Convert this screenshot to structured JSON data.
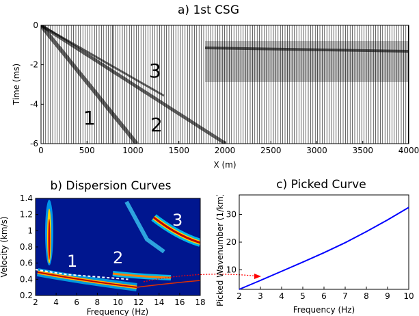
{
  "chart_data": [
    {
      "type": "image",
      "title": "a) 1st CSG",
      "xlabel": "X (m)",
      "ylabel": "Time (ms)",
      "xlim": [
        0,
        4000
      ],
      "ylim": [
        -6,
        0
      ],
      "xticks": [
        0,
        500,
        1000,
        1500,
        2000,
        2500,
        3000,
        3500,
        4000
      ],
      "yticks": [
        0,
        -2,
        -4,
        -6
      ],
      "annotations": [
        "1",
        "2",
        "3"
      ]
    },
    {
      "type": "image",
      "title": "b) Dispersion Curves",
      "xlabel": "Frequency (Hz)",
      "ylabel": "Velocity (km/s)",
      "xlim": [
        2,
        18
      ],
      "ylim": [
        0.2,
        1.4
      ],
      "xticks": [
        2,
        4,
        6,
        8,
        10,
        12,
        14,
        16,
        18
      ],
      "yticks": [
        0.2,
        0.4,
        0.6,
        0.8,
        1,
        1.2,
        1.4
      ],
      "annotations": [
        "1",
        "2",
        "3"
      ],
      "series": [
        {
          "color": "#ffffff",
          "x": [
            2,
            3,
            4,
            5,
            6,
            7,
            8,
            9,
            10,
            11
          ],
          "values": [
            0.52,
            0.5,
            0.48,
            0.46,
            0.45,
            0.44,
            0.43,
            0.42,
            0.41,
            0.4
          ]
        }
      ]
    },
    {
      "type": "line",
      "title": "c) Picked Curve",
      "xlabel": "Frequency (Hz)",
      "ylabel": "Picked Wavenumber (1/km)",
      "xlim": [
        2,
        10
      ],
      "ylim": [
        3,
        37
      ],
      "xticks": [
        2,
        3,
        4,
        5,
        6,
        7,
        8,
        9,
        10
      ],
      "yticks": [
        10,
        20,
        30
      ],
      "series": [
        {
          "color": "#0000ff",
          "x": [
            2,
            3,
            4,
            5,
            6,
            7,
            8,
            9,
            10
          ],
          "values": [
            3,
            6.2,
            9.5,
            12.8,
            16.2,
            19.8,
            23.8,
            28,
            32.5
          ]
        }
      ]
    }
  ]
}
